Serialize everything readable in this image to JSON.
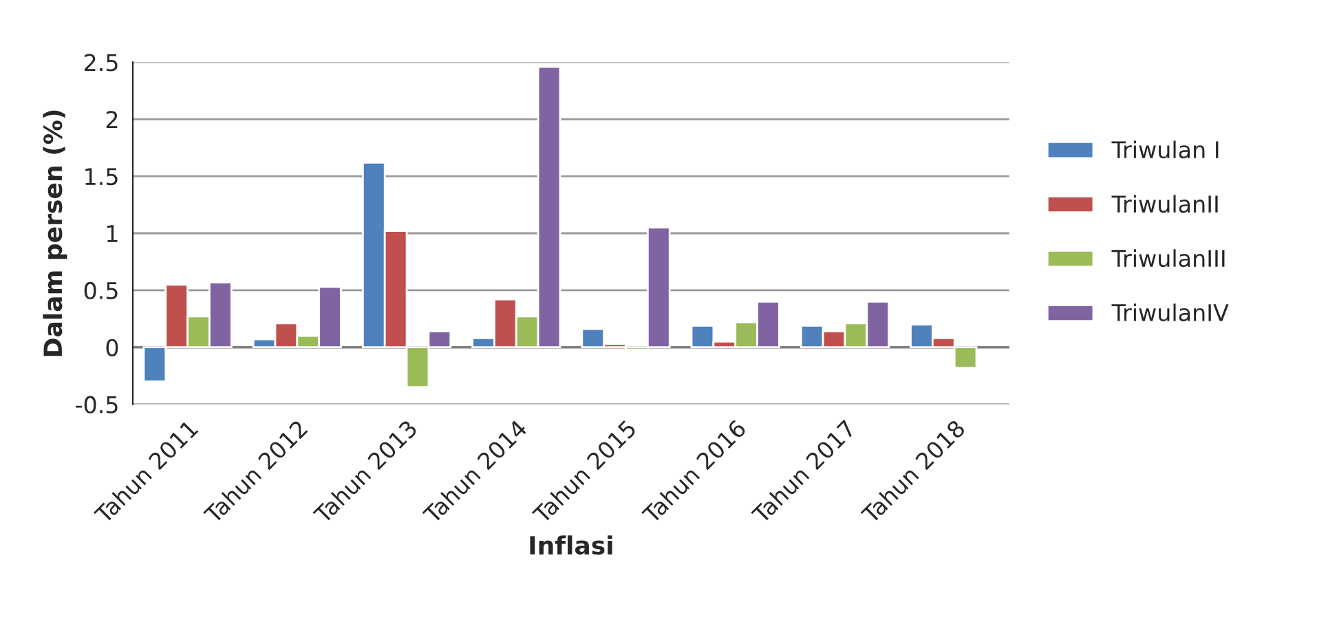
{
  "chart_data": {
    "type": "bar",
    "xlabel": "Inflasi",
    "ylabel": "Dalam persen (%)",
    "categories": [
      "Tahun 2011",
      "Tahun 2012",
      "Tahun 2013",
      "Tahun 2014",
      "Tahun 2015",
      "Tahun 2016",
      "Tahun 2017",
      "Tahun 2018"
    ],
    "series": [
      {
        "name": "Triwulan I",
        "color": "#4f81bd",
        "values": [
          -0.3,
          0.07,
          1.62,
          0.08,
          0.16,
          0.19,
          0.19,
          0.2
        ]
      },
      {
        "name": "TriwulanII",
        "color": "#c0504d",
        "values": [
          0.55,
          0.21,
          1.02,
          0.42,
          0.03,
          0.05,
          0.14,
          0.08
        ]
      },
      {
        "name": "TriwulanIII",
        "color": "#9bbb59",
        "values": [
          0.27,
          0.1,
          -0.35,
          0.27,
          -0.02,
          0.22,
          0.21,
          -0.18
        ]
      },
      {
        "name": "TriwulanIV",
        "color": "#8064a2",
        "values": [
          0.57,
          0.53,
          0.14,
          2.46,
          1.05,
          0.4,
          0.4,
          null
        ]
      }
    ],
    "ylim": [
      -0.5,
      2.5
    ],
    "yticks": [
      -0.5,
      0,
      0.5,
      1,
      1.5,
      2,
      2.5
    ],
    "grid": "y",
    "legend": "right"
  }
}
